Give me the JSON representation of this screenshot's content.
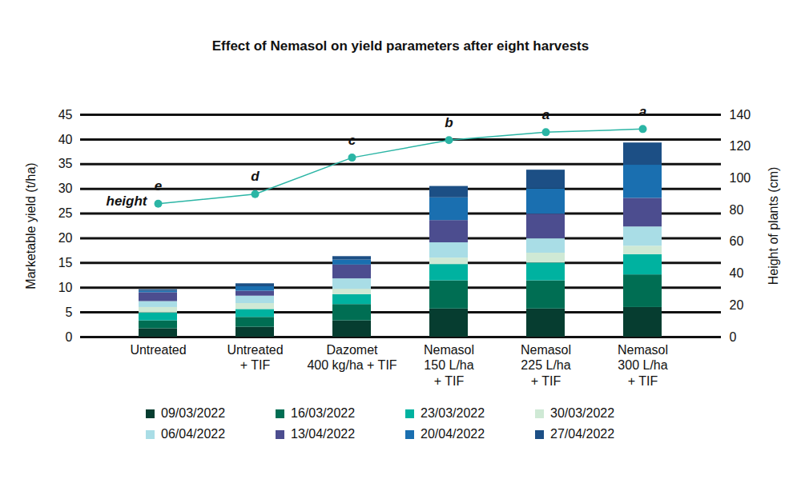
{
  "chart_data": {
    "type": "bar",
    "title": "Effect of Nemasol on yield parameters after eight harvests",
    "categories": [
      "Untreated",
      "Untreated\n+ TIF",
      "Dazomet\n400 kg/ha + TIF",
      "Nemasol\n150 L/ha\n+ TIF",
      "Nemasol\n225 L/ha\n+ TIF",
      "Nemasol\n300 L/ha\n+ TIF"
    ],
    "ylabel": "Marketable yield (t/ha)",
    "y2label": "Height of plants (cm)",
    "ylim": [
      0,
      45
    ],
    "yticks": [
      0,
      5,
      10,
      15,
      20,
      25,
      30,
      35,
      40,
      45
    ],
    "y2lim": [
      0,
      140
    ],
    "y2ticks": [
      0,
      20,
      40,
      60,
      80,
      100,
      120,
      140
    ],
    "grid": true,
    "stacked": true,
    "legend": "bottom",
    "series": [
      {
        "name": "09/03/2022",
        "type": "bar",
        "color": "#063d30",
        "values": [
          1.7,
          2.0,
          3.3,
          5.7,
          5.7,
          6.0
        ]
      },
      {
        "name": "16/03/2022",
        "type": "bar",
        "color": "#006e53",
        "values": [
          1.6,
          2.0,
          3.3,
          5.7,
          5.7,
          6.6
        ]
      },
      {
        "name": "23/03/2022",
        "type": "bar",
        "color": "#00b2a0",
        "values": [
          1.6,
          1.6,
          2.0,
          3.3,
          3.6,
          4.1
        ]
      },
      {
        "name": "30/03/2022",
        "type": "bar",
        "color": "#cfe9d5",
        "values": [
          1.1,
          1.2,
          1.1,
          1.3,
          2.0,
          1.7
        ]
      },
      {
        "name": "06/04/2022",
        "type": "bar",
        "color": "#a9dde6",
        "values": [
          1.2,
          1.5,
          2.1,
          3.1,
          2.9,
          3.9
        ]
      },
      {
        "name": "13/04/2022",
        "type": "bar",
        "color": "#4c4d8f",
        "values": [
          1.8,
          1.0,
          2.8,
          4.5,
          5.0,
          5.8
        ]
      },
      {
        "name": "20/04/2022",
        "type": "bar",
        "color": "#1a6fb0",
        "values": [
          0.3,
          0.9,
          1.0,
          4.6,
          5.1,
          6.7
        ]
      },
      {
        "name": "27/04/2022",
        "type": "bar",
        "color": "#1c4f85",
        "values": [
          0.3,
          0.6,
          0.7,
          2.3,
          3.8,
          4.5
        ]
      },
      {
        "name": "height",
        "type": "line",
        "axis": "y2",
        "color": "#2bb5a5",
        "marker": "circle",
        "values": [
          84,
          90,
          113,
          124,
          129,
          131
        ],
        "annotations": [
          "e",
          "d",
          "c",
          "b",
          "a",
          "a"
        ]
      }
    ]
  }
}
